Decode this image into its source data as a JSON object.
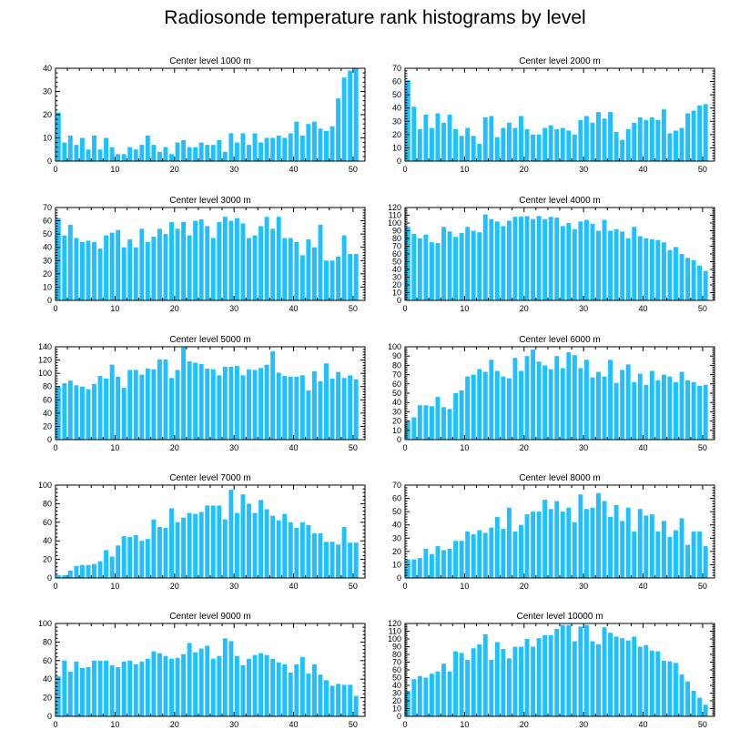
{
  "figure": {
    "title": "Radiosonde temperature rank histograms by level",
    "bar_color": "#1ec0ff",
    "grid": false
  },
  "chart_data": [
    {
      "type": "bar",
      "title": "Center level 1000 m",
      "xlim": [
        0,
        52
      ],
      "ylim": [
        0,
        40
      ],
      "xticks": [
        0,
        10,
        20,
        30,
        40,
        50
      ],
      "yticks": [
        0,
        10,
        20,
        30,
        40
      ],
      "values": [
        21,
        8,
        11,
        7,
        10,
        5,
        11,
        5,
        10,
        6,
        3,
        3,
        6,
        5,
        7,
        11,
        7,
        4,
        6,
        3,
        8,
        9,
        6,
        6,
        8,
        7,
        7,
        9,
        4,
        12,
        8,
        12,
        7,
        12,
        8,
        10,
        10,
        11,
        10,
        12,
        17,
        11,
        16,
        17,
        14,
        13,
        15,
        27,
        36,
        39,
        40
      ]
    },
    {
      "type": "bar",
      "title": "Center level 2000 m",
      "xlim": [
        0,
        52
      ],
      "ylim": [
        0,
        70
      ],
      "xticks": [
        0,
        10,
        20,
        30,
        40,
        50
      ],
      "yticks": [
        0,
        10,
        20,
        30,
        40,
        50,
        60,
        70
      ],
      "values": [
        61,
        41,
        24,
        35,
        25,
        36,
        29,
        35,
        24,
        19,
        25,
        19,
        13,
        33,
        34,
        18,
        25,
        29,
        25,
        34,
        24,
        20,
        20,
        25,
        27,
        24,
        25,
        23,
        20,
        31,
        34,
        29,
        37,
        32,
        37,
        22,
        16,
        24,
        29,
        33,
        31,
        33,
        31,
        39,
        21,
        23,
        25,
        36,
        38,
        42,
        43
      ]
    },
    {
      "type": "bar",
      "title": "Center level 3000 m",
      "xlim": [
        0,
        52
      ],
      "ylim": [
        0,
        70
      ],
      "xticks": [
        0,
        10,
        20,
        30,
        40,
        50
      ],
      "yticks": [
        0,
        10,
        20,
        30,
        40,
        50,
        60,
        70
      ],
      "values": [
        62,
        49,
        57,
        47,
        44,
        45,
        44,
        39,
        49,
        51,
        53,
        40,
        46,
        40,
        54,
        44,
        48,
        54,
        50,
        59,
        54,
        59,
        49,
        60,
        61,
        56,
        47,
        59,
        63,
        60,
        62,
        58,
        47,
        49,
        56,
        63,
        54,
        63,
        47,
        47,
        44,
        34,
        46,
        40,
        57,
        30,
        30,
        33,
        49,
        35,
        35
      ]
    },
    {
      "type": "bar",
      "title": "Center level 4000 m",
      "xlim": [
        0,
        52
      ],
      "ylim": [
        0,
        120
      ],
      "xticks": [
        0,
        10,
        20,
        30,
        40,
        50
      ],
      "yticks": [
        0,
        10,
        20,
        30,
        40,
        50,
        60,
        70,
        80,
        90,
        100,
        110,
        120
      ],
      "values": [
        95,
        86,
        80,
        85,
        75,
        74,
        95,
        89,
        82,
        87,
        95,
        90,
        88,
        111,
        105,
        102,
        96,
        103,
        108,
        108,
        109,
        105,
        109,
        105,
        108,
        107,
        96,
        100,
        92,
        102,
        104,
        99,
        90,
        104,
        90,
        92,
        89,
        80,
        95,
        83,
        80,
        79,
        78,
        75,
        65,
        69,
        60,
        55,
        52,
        45,
        38
      ]
    },
    {
      "type": "bar",
      "title": "Center level 5000 m",
      "xlim": [
        0,
        52
      ],
      "ylim": [
        0,
        140
      ],
      "xticks": [
        0,
        10,
        20,
        30,
        40,
        50
      ],
      "yticks": [
        0,
        20,
        40,
        60,
        80,
        100,
        120,
        140
      ],
      "values": [
        80,
        85,
        89,
        82,
        80,
        76,
        84,
        96,
        92,
        113,
        95,
        78,
        105,
        105,
        98,
        107,
        106,
        121,
        121,
        93,
        105,
        139,
        118,
        116,
        114,
        107,
        106,
        97,
        110,
        110,
        111,
        97,
        106,
        105,
        108,
        113,
        133,
        101,
        96,
        95,
        95,
        97,
        74,
        103,
        88,
        115,
        92,
        102,
        93,
        97,
        91
      ]
    },
    {
      "type": "bar",
      "title": "Center level 6000 m",
      "xlim": [
        0,
        52
      ],
      "ylim": [
        0,
        100
      ],
      "xticks": [
        0,
        10,
        20,
        30,
        40,
        50
      ],
      "yticks": [
        0,
        10,
        20,
        30,
        40,
        50,
        60,
        70,
        80,
        90,
        100
      ],
      "values": [
        20,
        24,
        37,
        37,
        36,
        46,
        35,
        33,
        50,
        53,
        68,
        70,
        76,
        73,
        86,
        74,
        68,
        66,
        88,
        74,
        90,
        97,
        84,
        80,
        76,
        90,
        77,
        94,
        91,
        77,
        86,
        67,
        73,
        68,
        86,
        61,
        75,
        81,
        62,
        71,
        59,
        74,
        64,
        70,
        68,
        62,
        73,
        64,
        62,
        58,
        59
      ]
    },
    {
      "type": "bar",
      "title": "Center level 7000 m",
      "xlim": [
        0,
        52
      ],
      "ylim": [
        0,
        100
      ],
      "xticks": [
        0,
        10,
        20,
        30,
        40,
        50
      ],
      "yticks": [
        0,
        20,
        40,
        60,
        80,
        100
      ],
      "values": [
        3,
        3,
        8,
        13,
        14,
        14,
        15,
        18,
        30,
        23,
        35,
        45,
        44,
        46,
        40,
        42,
        63,
        55,
        54,
        75,
        60,
        65,
        70,
        69,
        71,
        78,
        78,
        78,
        63,
        95,
        70,
        90,
        80,
        70,
        84,
        74,
        67,
        62,
        69,
        60,
        54,
        60,
        57,
        48,
        48,
        39,
        39,
        36,
        55,
        38,
        38
      ]
    },
    {
      "type": "bar",
      "title": "Center level 8000 m",
      "xlim": [
        0,
        52
      ],
      "ylim": [
        0,
        70
      ],
      "xticks": [
        0,
        10,
        20,
        30,
        40,
        50
      ],
      "yticks": [
        0,
        10,
        20,
        30,
        40,
        50,
        60,
        70
      ],
      "values": [
        14,
        14,
        15,
        22,
        18,
        24,
        21,
        22,
        28,
        28,
        35,
        33,
        36,
        34,
        38,
        46,
        37,
        53,
        35,
        40,
        48,
        50,
        50,
        59,
        52,
        58,
        50,
        53,
        42,
        63,
        52,
        53,
        64,
        58,
        46,
        55,
        43,
        53,
        35,
        52,
        47,
        48,
        35,
        43,
        31,
        36,
        45,
        25,
        35,
        35,
        24
      ]
    },
    {
      "type": "bar",
      "title": "Center level 9000 m",
      "xlim": [
        0,
        52
      ],
      "ylim": [
        0,
        100
      ],
      "xticks": [
        0,
        10,
        20,
        30,
        40,
        50
      ],
      "yticks": [
        0,
        20,
        40,
        60,
        80,
        100
      ],
      "values": [
        43,
        60,
        48,
        59,
        52,
        53,
        60,
        60,
        60,
        55,
        53,
        59,
        60,
        56,
        59,
        62,
        70,
        68,
        65,
        62,
        63,
        67,
        79,
        69,
        73,
        76,
        62,
        65,
        84,
        81,
        65,
        55,
        62,
        66,
        68,
        66,
        62,
        58,
        56,
        47,
        56,
        64,
        46,
        56,
        45,
        39,
        33,
        35,
        34,
        34,
        22
      ]
    },
    {
      "type": "bar",
      "title": "Center level 10000 m",
      "xlim": [
        0,
        52
      ],
      "ylim": [
        0,
        120
      ],
      "xticks": [
        0,
        10,
        20,
        30,
        40,
        50
      ],
      "yticks": [
        0,
        10,
        20,
        30,
        40,
        50,
        60,
        70,
        80,
        90,
        100,
        110,
        120
      ],
      "values": [
        33,
        48,
        52,
        50,
        55,
        58,
        68,
        58,
        84,
        82,
        73,
        88,
        93,
        106,
        73,
        96,
        87,
        75,
        90,
        90,
        100,
        90,
        101,
        105,
        105,
        113,
        118,
        118,
        97,
        116,
        118,
        97,
        93,
        115,
        108,
        103,
        101,
        98,
        103,
        90,
        92,
        85,
        84,
        72,
        71,
        69,
        54,
        45,
        33,
        24,
        15
      ]
    }
  ]
}
